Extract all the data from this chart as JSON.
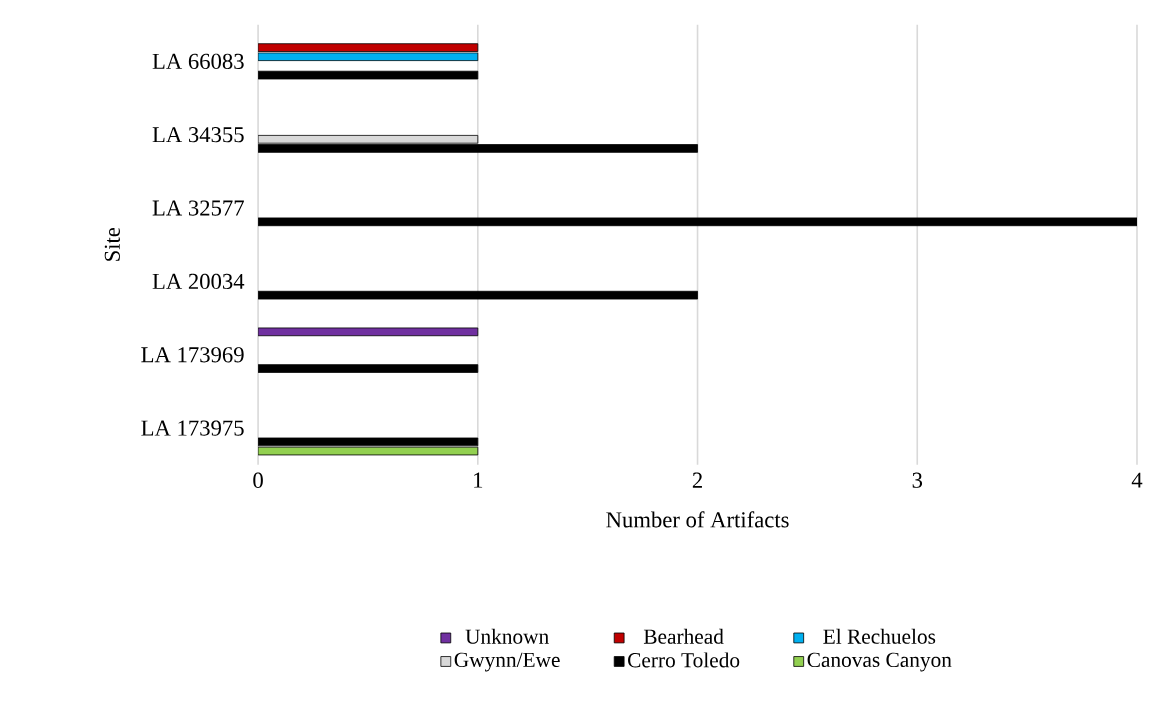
{
  "chart_data": {
    "type": "bar",
    "orientation": "horizontal",
    "categories": [
      "LA 66083",
      "LA 34355",
      "LA 32577",
      "LA 20034",
      "LA 173969",
      "LA 173975"
    ],
    "series": [
      {
        "name": "Unknown",
        "color": "#7030a0",
        "values": [
          null,
          null,
          null,
          null,
          1,
          null
        ]
      },
      {
        "name": "Bearhead",
        "color": "#c00000",
        "values": [
          1,
          null,
          null,
          null,
          null,
          null
        ]
      },
      {
        "name": "El Rechuelos",
        "color": "#00b0f0",
        "values": [
          1,
          null,
          null,
          null,
          null,
          null
        ]
      },
      {
        "name": "Gwynn/Ewe",
        "color": "#d9d9d9",
        "values": [
          null,
          1,
          null,
          null,
          null,
          null
        ]
      },
      {
        "name": "Cerro Toledo",
        "color": "#000000",
        "values": [
          1,
          2,
          4,
          2,
          1,
          1
        ]
      },
      {
        "name": "Canovas Canyon",
        "color": "#92d050",
        "values": [
          null,
          null,
          null,
          null,
          null,
          1
        ]
      }
    ],
    "xlim": [
      0,
      4
    ],
    "xticks": [
      0,
      1,
      2,
      3,
      4
    ],
    "xlabel": "Number of Artifacts",
    "ylabel": "Site",
    "grid": "x",
    "legend": "bottom"
  }
}
